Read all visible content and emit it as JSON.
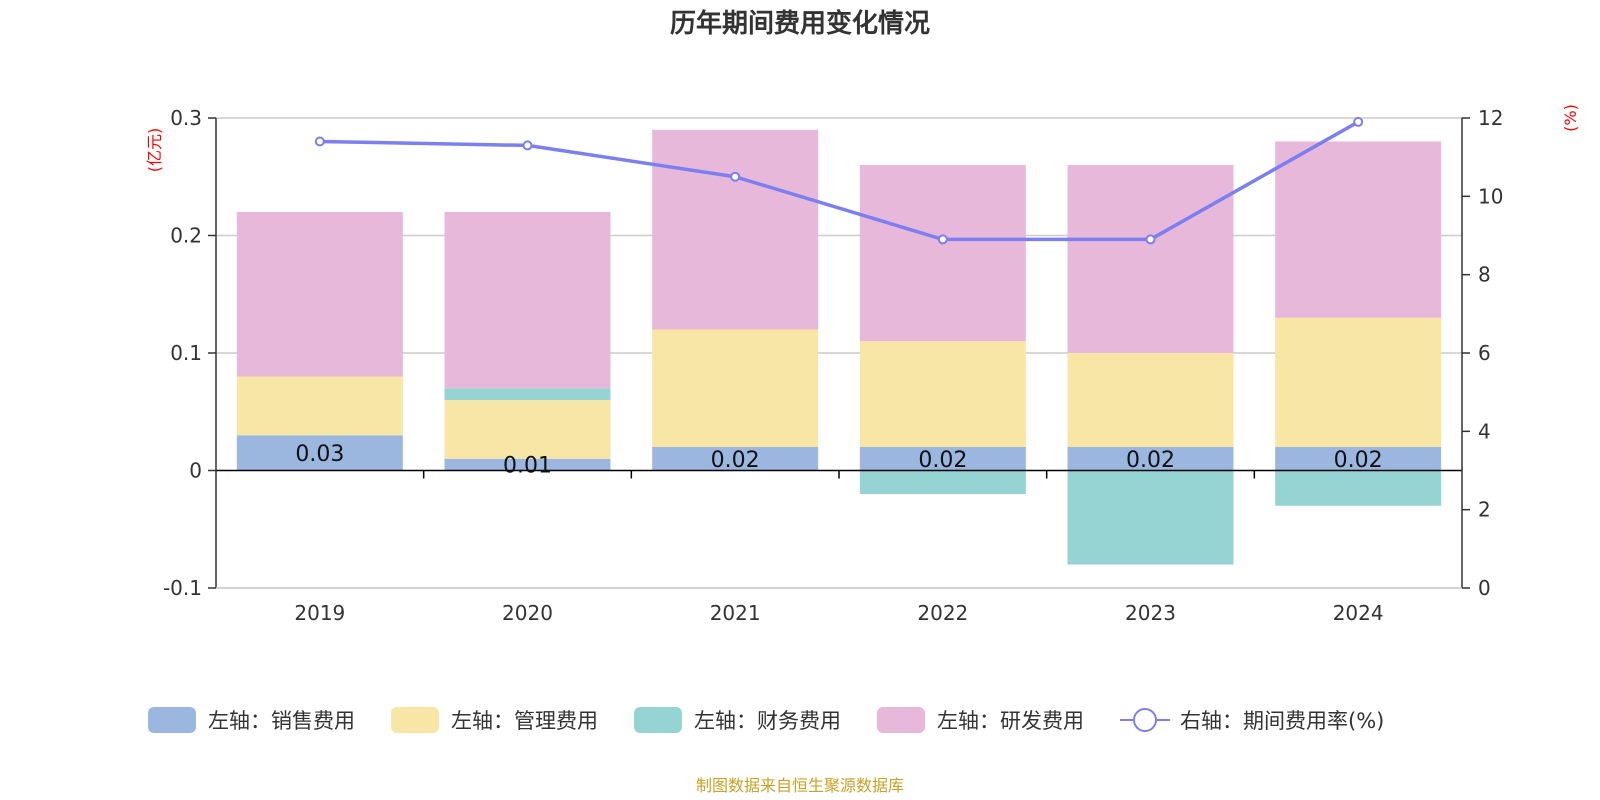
{
  "chart_data": {
    "type": "bar",
    "title": "历年期间费用变化情况",
    "left_unit": "(亿元)",
    "right_unit": "(%)",
    "categories": [
      "2019",
      "2020",
      "2021",
      "2022",
      "2023",
      "2024"
    ],
    "left_ylim": [
      -0.1,
      0.3
    ],
    "left_ticks": [
      "-0.1",
      "0",
      "0.1",
      "0.2",
      "0.3"
    ],
    "left_tick_values": [
      -0.1,
      0,
      0.1,
      0.2,
      0.3
    ],
    "right_ylim": [
      0,
      12
    ],
    "right_ticks": [
      "0",
      "2",
      "4",
      "6",
      "8",
      "10",
      "12"
    ],
    "right_tick_values": [
      0,
      2,
      4,
      6,
      8,
      10,
      12
    ],
    "grid": true,
    "stacked": true,
    "series": [
      {
        "name": "左轴：销售费用",
        "axis": "left",
        "type": "bar",
        "color": "#9bb7e0",
        "values": [
          0.03,
          0.01,
          0.02,
          0.02,
          0.02,
          0.02
        ],
        "labels": [
          "0.03",
          "0.01",
          "0.02",
          "0.02",
          "0.02",
          "0.02"
        ]
      },
      {
        "name": "左轴：管理费用",
        "axis": "left",
        "type": "bar",
        "color": "#f8e6a6",
        "values": [
          0.05,
          0.05,
          0.1,
          0.09,
          0.08,
          0.11
        ]
      },
      {
        "name": "左轴：财务费用",
        "axis": "left",
        "type": "bar",
        "color": "#96d4d4",
        "values": [
          0.0,
          0.01,
          0.0,
          -0.02,
          -0.08,
          -0.03
        ]
      },
      {
        "name": "左轴：研发费用",
        "axis": "left",
        "type": "bar",
        "color": "#e7b8d9",
        "values": [
          0.14,
          0.15,
          0.17,
          0.15,
          0.16,
          0.15
        ]
      },
      {
        "name": "右轴：期间费用率(%)",
        "axis": "right",
        "type": "line",
        "color": "#7b7ff0",
        "values": [
          11.4,
          11.3,
          10.5,
          8.9,
          8.9,
          11.9
        ]
      }
    ],
    "legend_position": "bottom",
    "source": "制图数据来自恒生聚源数据库"
  }
}
